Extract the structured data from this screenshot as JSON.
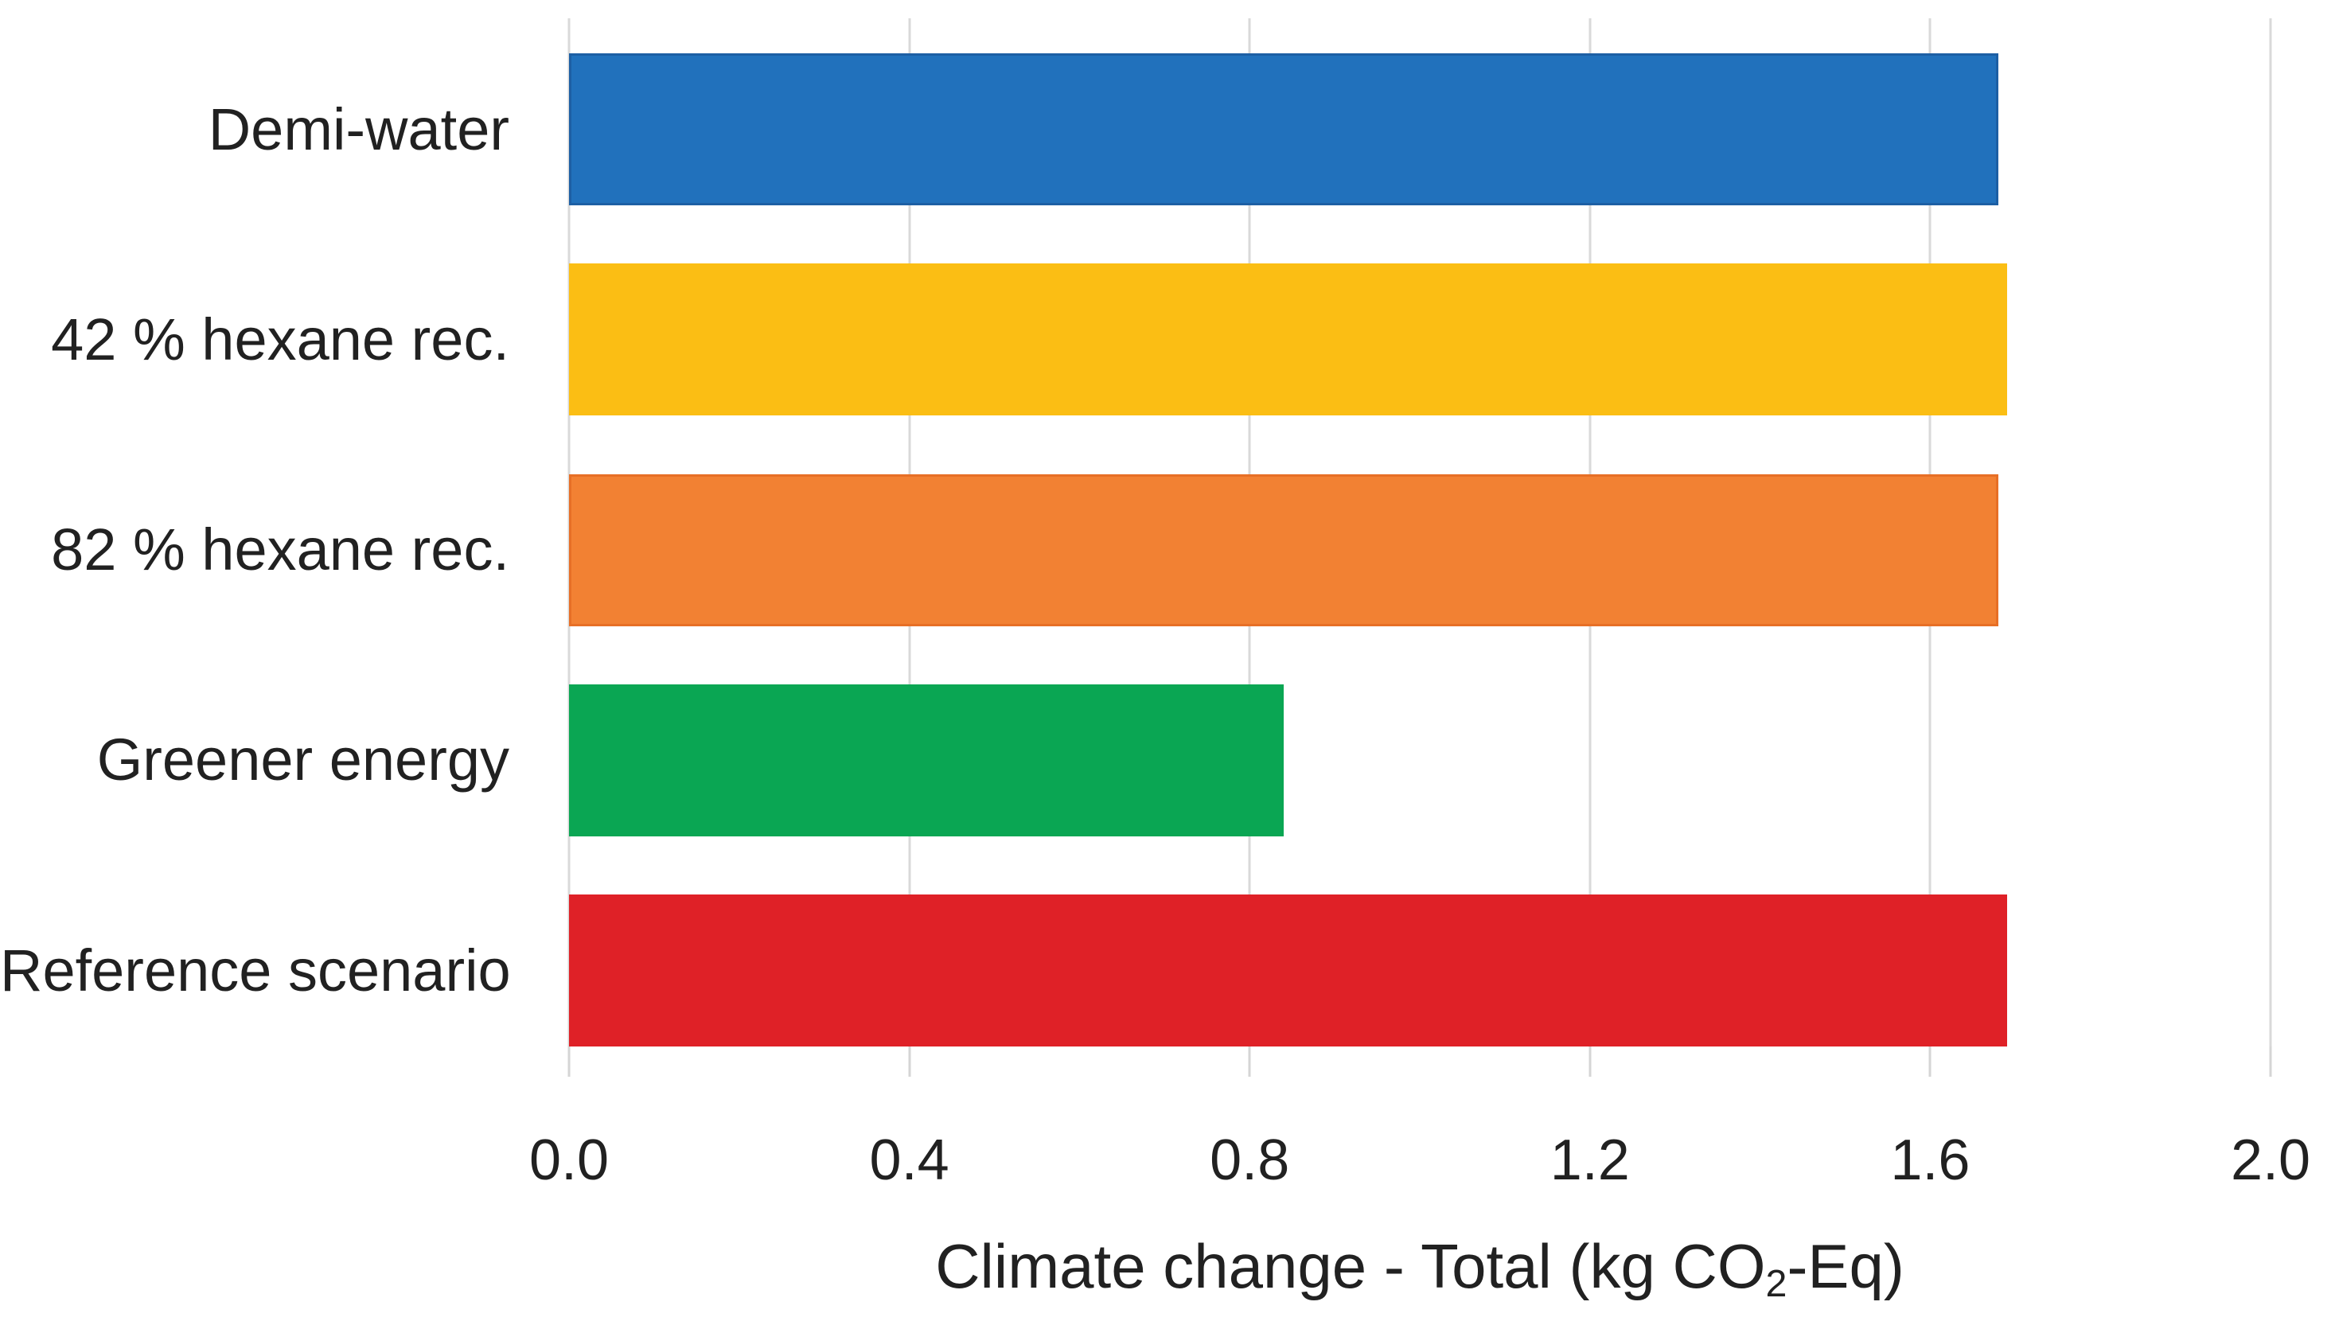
{
  "chart_data": {
    "type": "bar",
    "orientation": "horizontal",
    "title": "",
    "categories": [
      "Demi-water",
      "42 % hexane rec.",
      "82 % hexane rec.",
      "Greener energy",
      "Reference scenario"
    ],
    "values": [
      1.68,
      1.69,
      1.68,
      0.84,
      1.69
    ],
    "bar_colors": [
      "#2171BC",
      "#FBBE14",
      "#F28133",
      "#0AA653",
      "#DF2127"
    ],
    "bar_border_colors": [
      "#1D5FA4",
      "#FBBE14",
      "#E76F26",
      "#0AA653",
      "#DF2127"
    ],
    "x_ticks": [
      "0.0",
      "0.4",
      "0.8",
      "1.2",
      "1.6",
      "2.0"
    ],
    "xlim": [
      0.0,
      2.0
    ],
    "xlabel_prefix": "Climate change - Total (kg CO",
    "xlabel_sub": "2",
    "xlabel_suffix": "-Eq)",
    "xlabel_full": "Climate change - Total (kg CO2-Eq)",
    "ylabel": "",
    "legend": "none",
    "grid": "vertical",
    "gridline_color": "#D9D9D9",
    "tick_color": "#D5D5D5",
    "background_color": "#FFFFFF",
    "text_color": "#212121"
  }
}
